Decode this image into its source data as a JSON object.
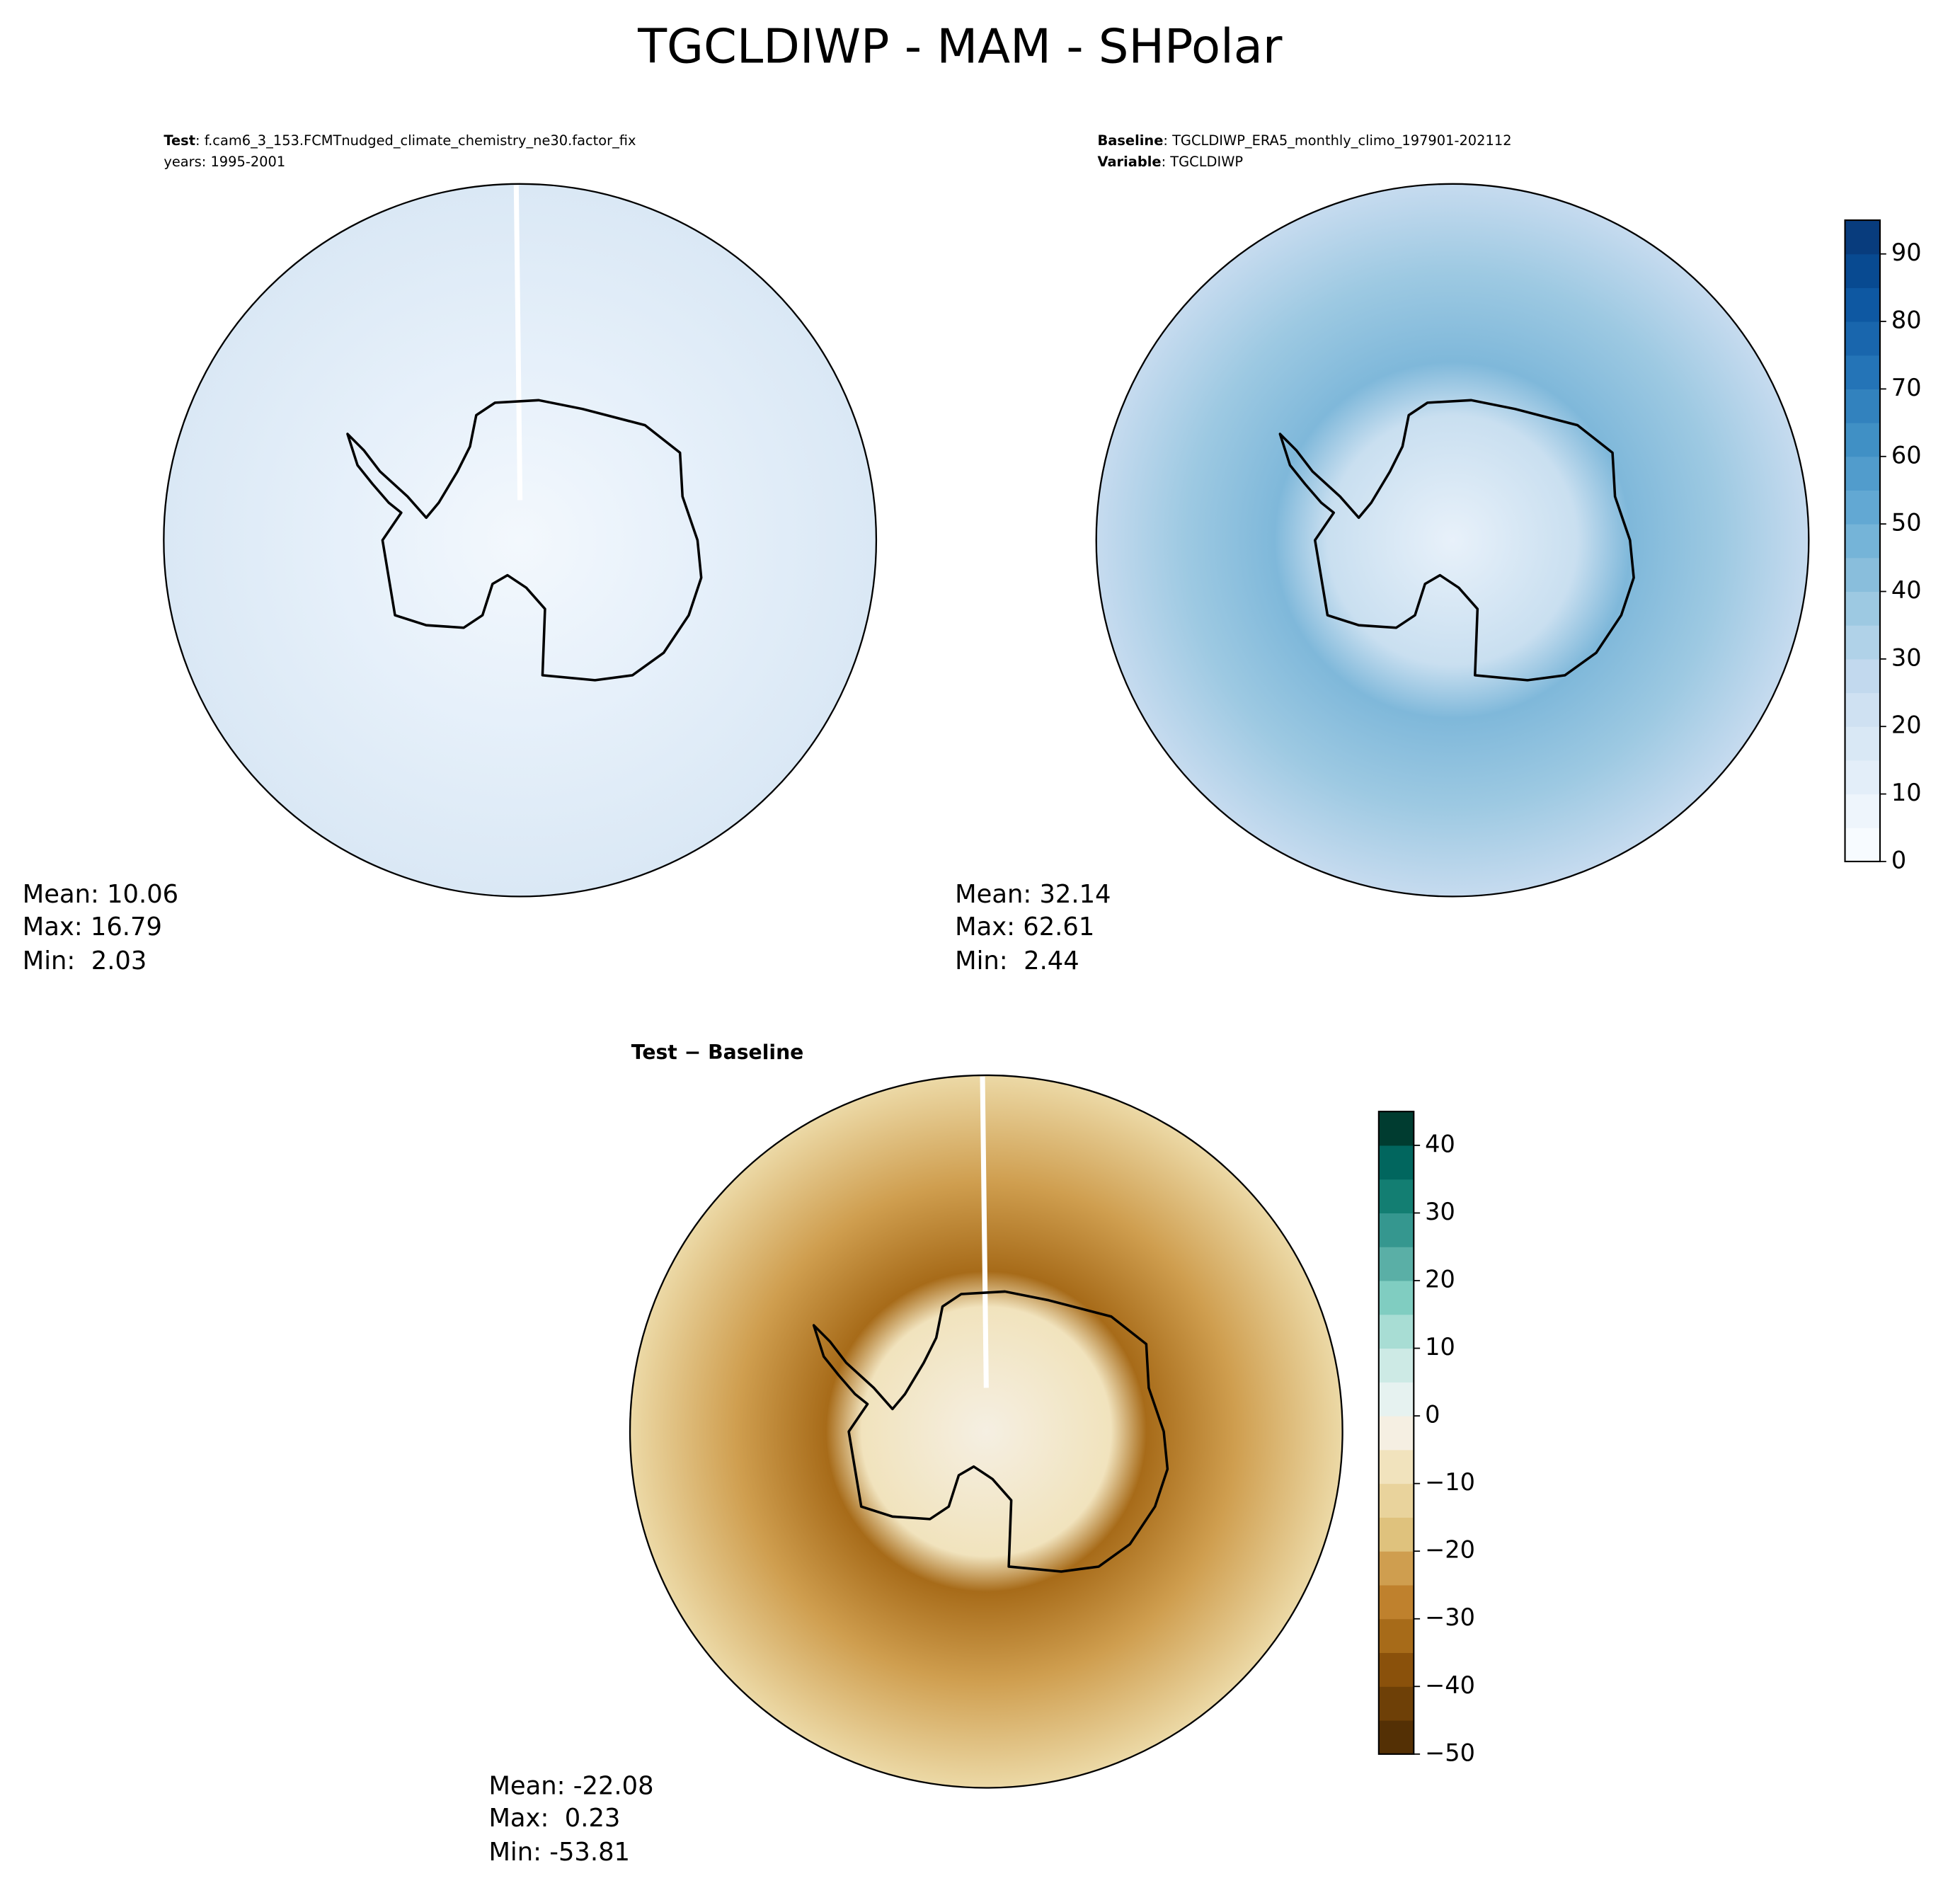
{
  "title": "TGCLDIWP - MAM - SHPolar",
  "panels": [
    {
      "lines": [
        {
          "label": "Test",
          "text": ": f.cam6_3_153.FCMTnudged_climate_chemistry_ne30.factor_fix"
        },
        {
          "text": "years: 1995-2001"
        }
      ],
      "stats": [
        "Mean: 10.06",
        "Max: 16.79",
        "Min:  2.03"
      ]
    },
    {
      "lines": [
        {
          "label": "Baseline",
          "text": ": TGCLDIWP_ERA5_monthly_climo_197901-202112"
        },
        {
          "label": "Variable",
          "text": ": TGCLDIWP"
        }
      ],
      "stats": [
        "Mean: 32.14",
        "Max: 62.61",
        "Min:  2.44"
      ]
    },
    {
      "lines": [
        {
          "label": "Test − Baseline"
        }
      ],
      "stats": [
        "Mean: -22.08",
        "Max:  0.23",
        "Min: -53.81"
      ]
    }
  ],
  "colorbars": [
    {
      "lim": [
        0,
        95
      ],
      "ticks": [
        0,
        10,
        20,
        30,
        40,
        50,
        60,
        70,
        80,
        90
      ],
      "colors": [
        "#f7fbff",
        "#eef5fc",
        "#e3eef9",
        "#d9e8f5",
        "#cfe1f2",
        "#c2d9ee",
        "#b0d2e8",
        "#9dc9e2",
        "#89bedc",
        "#75b4d8",
        "#62a8d3",
        "#519ccc",
        "#4090c5",
        "#3282be",
        "#2474b7",
        "#1966ad",
        "#0e58a2",
        "#084a91",
        "#083c7d"
      ]
    },
    {
      "lim": [
        -50,
        45
      ],
      "ticks": [
        {
          "value": -50,
          "label": "−50"
        },
        {
          "value": -40,
          "label": "−40"
        },
        {
          "value": -30,
          "label": "−30"
        },
        {
          "value": -20,
          "label": "−20"
        },
        {
          "value": -10,
          "label": "−10"
        },
        0,
        10,
        20,
        30,
        40
      ],
      "colors": [
        "#543005",
        "#6e4007",
        "#8a510b",
        "#a76b19",
        "#bf812d",
        "#cf9e4f",
        "#dfc27d",
        "#e9d39c",
        "#f1e3bd",
        "#f5efe2",
        "#e6f2f0",
        "#cdeae5",
        "#a8ddd4",
        "#80cdc1",
        "#5aafa6",
        "#35978f",
        "#137e72",
        "#01665e",
        "#003c30"
      ]
    }
  ]
}
